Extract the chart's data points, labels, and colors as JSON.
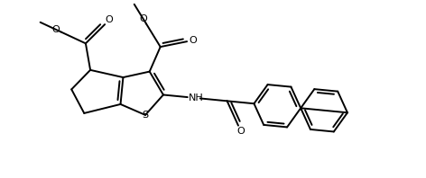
{
  "bg_color": "#ffffff",
  "line_color": "#000000",
  "line_width": 1.4,
  "figsize": [
    4.72,
    1.98
  ],
  "dpi": 100,
  "atoms": {
    "S_label": "S",
    "NH_label": "NH",
    "O_labels": [
      "O",
      "O",
      "O",
      "O",
      "O"
    ],
    "methyl_labels": [
      "",
      "",
      ""
    ]
  }
}
